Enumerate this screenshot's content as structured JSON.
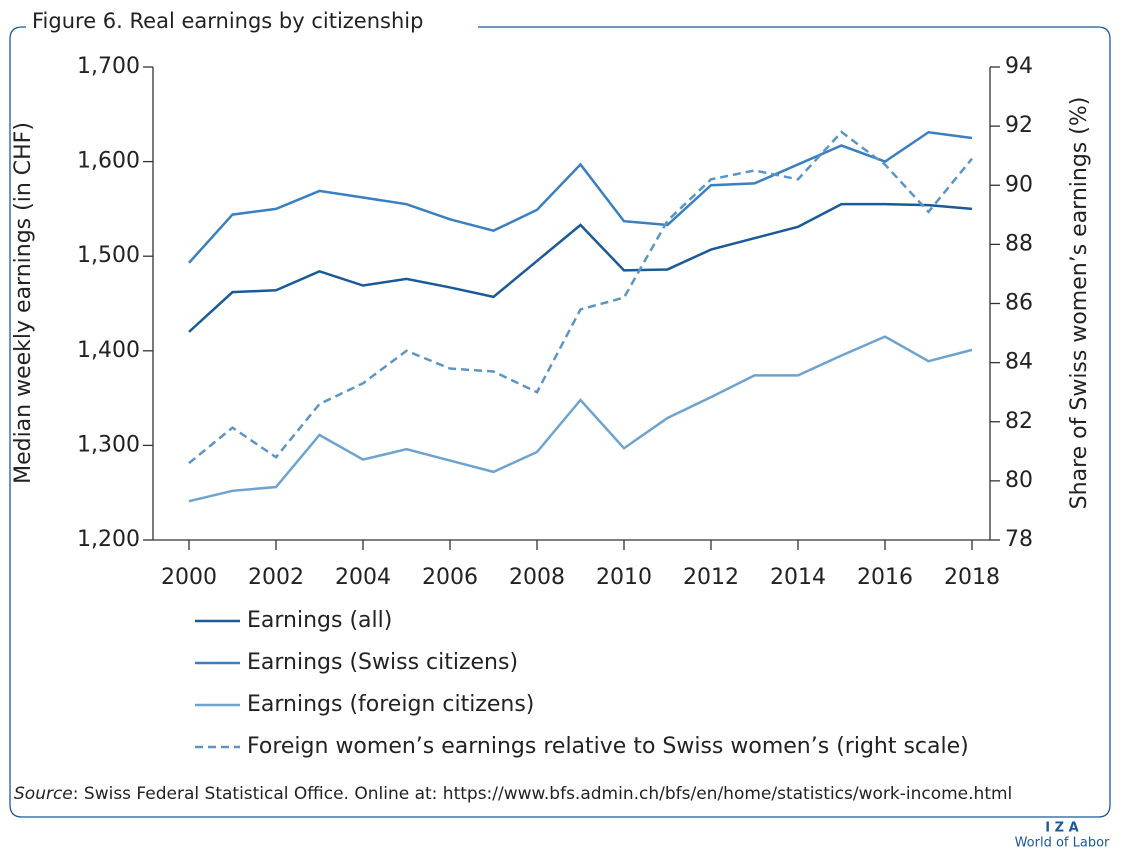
{
  "chart_data": {
    "type": "line",
    "title": "Figure 6. Real earnings by citizenship",
    "y_label": "Median weekly earnings (in CHF)",
    "y2_label": "Share of Swiss women’s earnings (%)",
    "x": [
      2000,
      2001,
      2002,
      2003,
      2004,
      2005,
      2006,
      2007,
      2008,
      2009,
      2010,
      2011,
      2012,
      2013,
      2014,
      2015,
      2016,
      2017,
      2018
    ],
    "xlim": [
      2000,
      2018
    ],
    "xticks": [
      2000,
      2002,
      2004,
      2006,
      2008,
      2010,
      2012,
      2014,
      2016,
      2018
    ],
    "ylim": [
      1200,
      1700
    ],
    "yticks": [
      {
        "value": 1200,
        "label": "1,200"
      },
      {
        "value": 1300,
        "label": "1,300"
      },
      {
        "value": 1400,
        "label": "1,400"
      },
      {
        "value": 1500,
        "label": "1,500"
      },
      {
        "value": 1600,
        "label": "1,600"
      },
      {
        "value": 1700,
        "label": "1,700"
      }
    ],
    "y2lim": [
      78,
      94
    ],
    "y2ticks": [
      78,
      80,
      82,
      84,
      86,
      88,
      90,
      92,
      94
    ],
    "grid": false,
    "series": [
      {
        "name": "Earnings (all)",
        "color": "#1a5a96",
        "style": "solid",
        "values": [
          1420,
          1462,
          1464,
          1484,
          1469,
          1476,
          1467,
          1457,
          1495,
          1533,
          1485,
          1486,
          1507,
          1519,
          1531,
          1555,
          1555,
          1554,
          1550
        ]
      },
      {
        "name": "Earnings (Swiss citizens)",
        "color": "#3a7fbf",
        "style": "solid",
        "values": [
          1493,
          1544,
          1550,
          1569,
          1562,
          1555,
          1539,
          1527,
          1549,
          1597,
          1537,
          1533,
          1575,
          1577,
          1597,
          1617,
          1600,
          1631,
          1625
        ]
      },
      {
        "name": "Earnings (foreign citizens)",
        "color": "#6ea3cf",
        "style": "solid",
        "values": [
          1241,
          1252,
          1256,
          1311,
          1285,
          1296,
          1284,
          1272,
          1293,
          1348,
          1297,
          1329,
          1351,
          1374,
          1374,
          1395,
          1415,
          1389,
          1401
        ]
      },
      {
        "name": "Foreign women’s earnings relative to Swiss women’s (right scale)",
        "color": "#5b95c8",
        "style": "dashed",
        "axis": "y2",
        "values": [
          80.6,
          81.8,
          80.8,
          82.6,
          83.3,
          84.4,
          83.8,
          83.7,
          83.0,
          85.8,
          86.2,
          88.8,
          90.2,
          90.5,
          90.2,
          91.8,
          90.7,
          89.1,
          90.9
        ]
      }
    ]
  },
  "source": {
    "label": "Source",
    "text": ": Swiss Federal Statistical Office. Online at: https://www.bfs.admin.ch/bfs/en/home/statistics/work-income.html"
  },
  "logo": {
    "mark": "I Z A",
    "name": "World of Labor"
  }
}
